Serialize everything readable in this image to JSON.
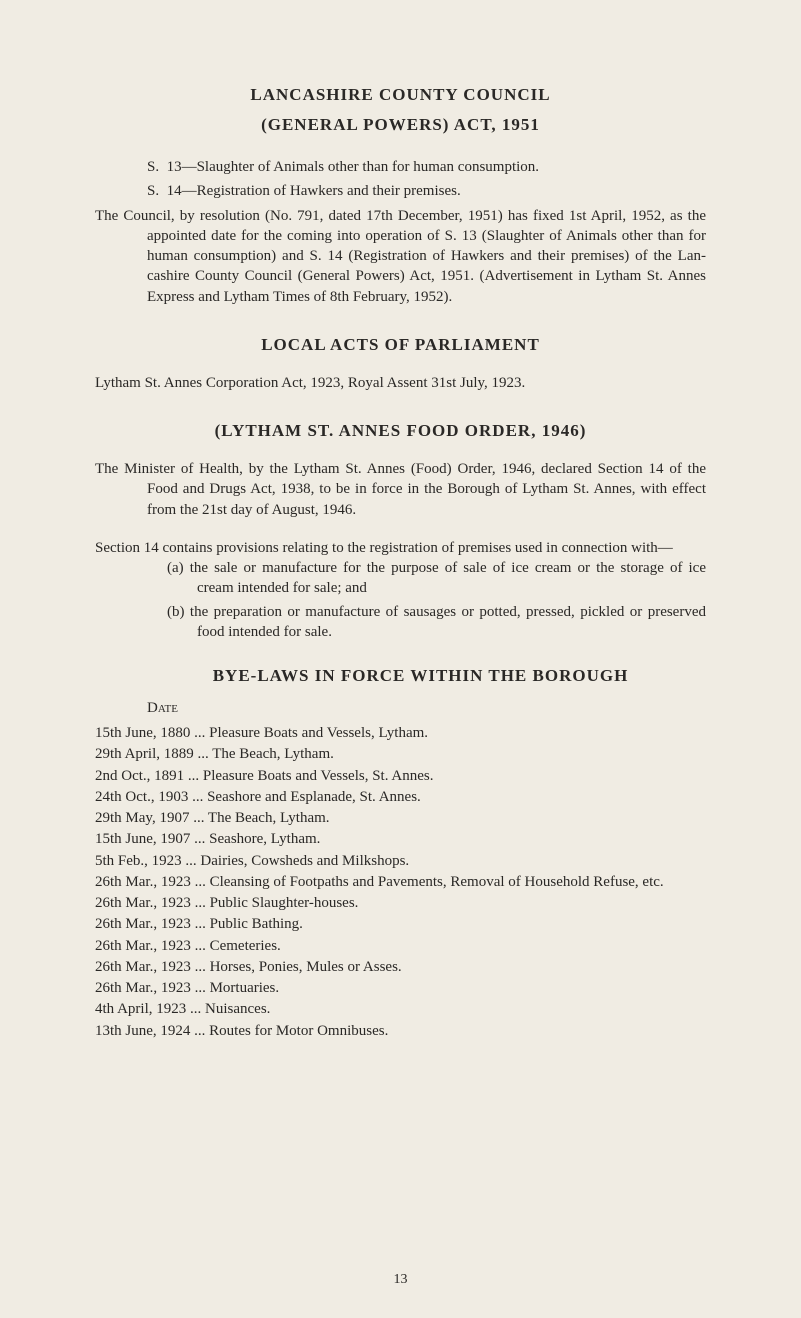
{
  "headings": {
    "main": "LANCASHIRE COUNTY COUNCIL",
    "general_powers": "(GENERAL POWERS) ACT, 1951",
    "local_acts": "LOCAL ACTS OF PARLIAMENT",
    "food_order": "(LYTHAM ST. ANNES FOOD ORDER, 1946)",
    "byelaws": "BYE-LAWS IN FORCE WITHIN THE BOROUGH"
  },
  "general_powers": {
    "s13": "S. 13—Slaughter of Animals other than for human consumption.",
    "s14": "S. 14—Registration of Hawkers and their premises.",
    "council_para": "The Council, by resolution (No. 791, dated 17th December, 1951) has fixed 1st April, 1952, as the appointed date for the coming into opera­tion of S. 13 (Slaughter of Animals other than for human consumption) and S. 14 (Registration of Hawkers and their premises) of the Lan­cashire County Council (General Powers) Act, 1951. (Advertisement in Lytham St. Annes Express and Lytham Times of 8th February, 1952)."
  },
  "local_acts_text": "Lytham St. Annes Corporation Act, 1923, Royal Assent 31st July, 1923.",
  "food_order": {
    "minister_para": "The Minister of Health, by the Lytham St. Annes (Food) Order, 1946, declared Section 14 of the Food and Drugs Act, 1938, to be in force in the Borough of Lytham St. Annes, with effect from the 21st day of August, 1946.",
    "section14_para": "Section 14 contains provisions relating to the registration of premises used in connection with—",
    "item_a": "(a) the sale or manufacture for the purpose of sale of ice cream or the storage of ice cream intended for sale; and",
    "item_b": "(b) the preparation or manufacture of sausages or potted, pressed, pickled or preserved food intended for sale."
  },
  "byelaws": {
    "date_label": "Date",
    "entries": [
      {
        "date": "15th June, 1880",
        "desc": "Pleasure Boats and Vessels, Lytham."
      },
      {
        "date": "29th April, 1889",
        "desc": "The Beach, Lytham."
      },
      {
        "date": " 2nd Oct., 1891",
        "desc": "Pleasure Boats and Vessels, St. Annes."
      },
      {
        "date": "24th Oct., 1903",
        "desc": "Seashore and Esplanade, St. Annes."
      },
      {
        "date": "29th May, 1907",
        "desc": "The Beach, Lytham."
      },
      {
        "date": "15th June, 1907",
        "desc": "Seashore, Lytham."
      },
      {
        "date": " 5th Feb., 1923",
        "desc": "Dairies, Cowsheds and Milkshops."
      },
      {
        "date": "26th Mar., 1923",
        "desc": "Cleansing of Footpaths and Pavements, Removal of Household Refuse, etc."
      },
      {
        "date": "26th Mar., 1923",
        "desc": "Public Slaughter-houses."
      },
      {
        "date": "26th Mar., 1923",
        "desc": "Public Bathing."
      },
      {
        "date": "26th Mar., 1923",
        "desc": "Cemeteries."
      },
      {
        "date": "26th Mar., 1923",
        "desc": "Horses, Ponies, Mules or Asses."
      },
      {
        "date": "26th Mar., 1923",
        "desc": "Mortuaries."
      },
      {
        "date": " 4th April, 1923",
        "desc": "Nuisances."
      },
      {
        "date": "13th June, 1924",
        "desc": "Routes for Motor Omnibuses."
      }
    ]
  },
  "page_number": "13"
}
